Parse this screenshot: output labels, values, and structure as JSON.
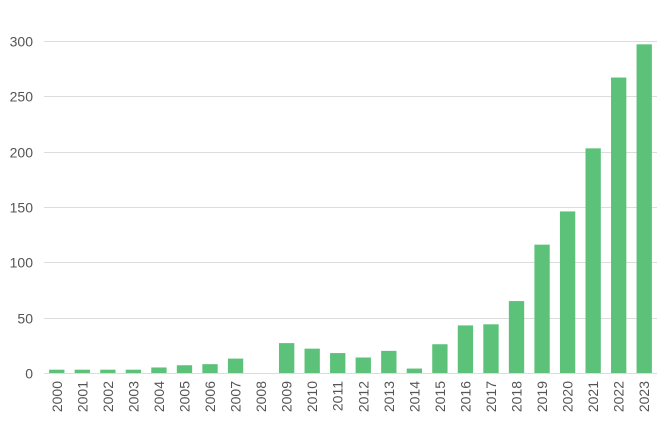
{
  "chart_data": {
    "type": "bar",
    "title": "",
    "xlabel": "",
    "ylabel": "",
    "categories": [
      "2000",
      "2001",
      "2002",
      "2003",
      "2004",
      "2005",
      "2006",
      "2007",
      "2008",
      "2009",
      "2010",
      "2011",
      "2012",
      "2013",
      "2014",
      "2015",
      "2016",
      "2017",
      "2018",
      "2019",
      "2020",
      "2021",
      "2022",
      "2023"
    ],
    "values": [
      3,
      3,
      3,
      3,
      5,
      7,
      8,
      13,
      0,
      27,
      22,
      18,
      14,
      20,
      4,
      26,
      43,
      44,
      65,
      116,
      146,
      203,
      267,
      297
    ],
    "ylim": [
      0,
      300
    ],
    "yticks": [
      0,
      50,
      100,
      150,
      200,
      250,
      300
    ],
    "grid": true,
    "legend": "none",
    "x_tick_rotation": "vertical",
    "bar_color": "#5cc279",
    "grid_color": "#dcdcdc",
    "tick_color": "#555555"
  }
}
